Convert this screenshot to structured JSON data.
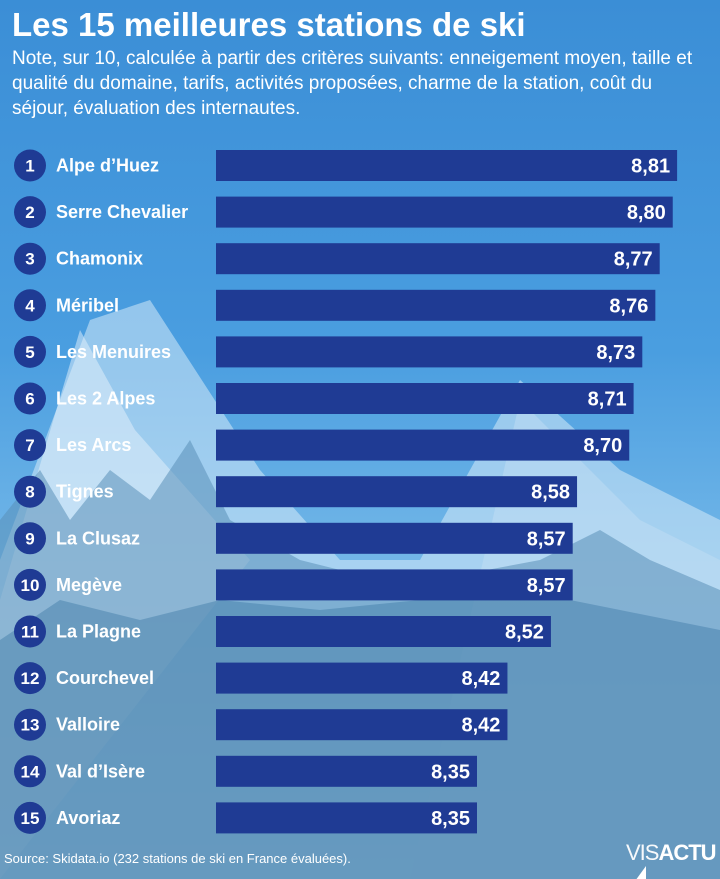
{
  "title": "Les 15 meilleures stations de ski",
  "subtitle": "Note, sur 10, calculée à partir des critères suivants: enneigement moyen, taille et qualité du domaine, tarifs, activités proposées, charme de la station, coût du séjour, évaluation des internautes.",
  "source": "Source: Skidata.io (232 stations de ski en France évaluées).",
  "logo": {
    "part1": "VIS",
    "part2": "ACTU"
  },
  "colors": {
    "bar": "#1f3b94",
    "rank_circle": "#1f3b94",
    "text": "#ffffff"
  },
  "chart_data": {
    "type": "bar",
    "orientation": "horizontal",
    "ranks": [
      "1",
      "2",
      "3",
      "4",
      "5",
      "6",
      "7",
      "8",
      "9",
      "10",
      "11",
      "12",
      "13",
      "14",
      "15"
    ],
    "categories": [
      "Alpe d’Huez",
      "Serre Chevalier",
      "Chamonix",
      "Méribel",
      "Les Menuires",
      "Les 2 Alpes",
      "Les Arcs",
      "Tignes",
      "La Clusaz",
      "Megève",
      "La Plagne",
      "Courchevel",
      "Valloire",
      "Val d’Isère",
      "Avoriaz"
    ],
    "values": [
      8.81,
      8.8,
      8.77,
      8.76,
      8.73,
      8.71,
      8.7,
      8.58,
      8.57,
      8.57,
      8.52,
      8.42,
      8.42,
      8.35,
      8.35
    ],
    "value_labels": [
      "8,81",
      "8,80",
      "8,77",
      "8,76",
      "8,73",
      "8,71",
      "8,70",
      "8,58",
      "8,57",
      "8,57",
      "8,52",
      "8,42",
      "8,42",
      "8,35",
      "8,35"
    ],
    "grid": false,
    "legend": "none"
  }
}
